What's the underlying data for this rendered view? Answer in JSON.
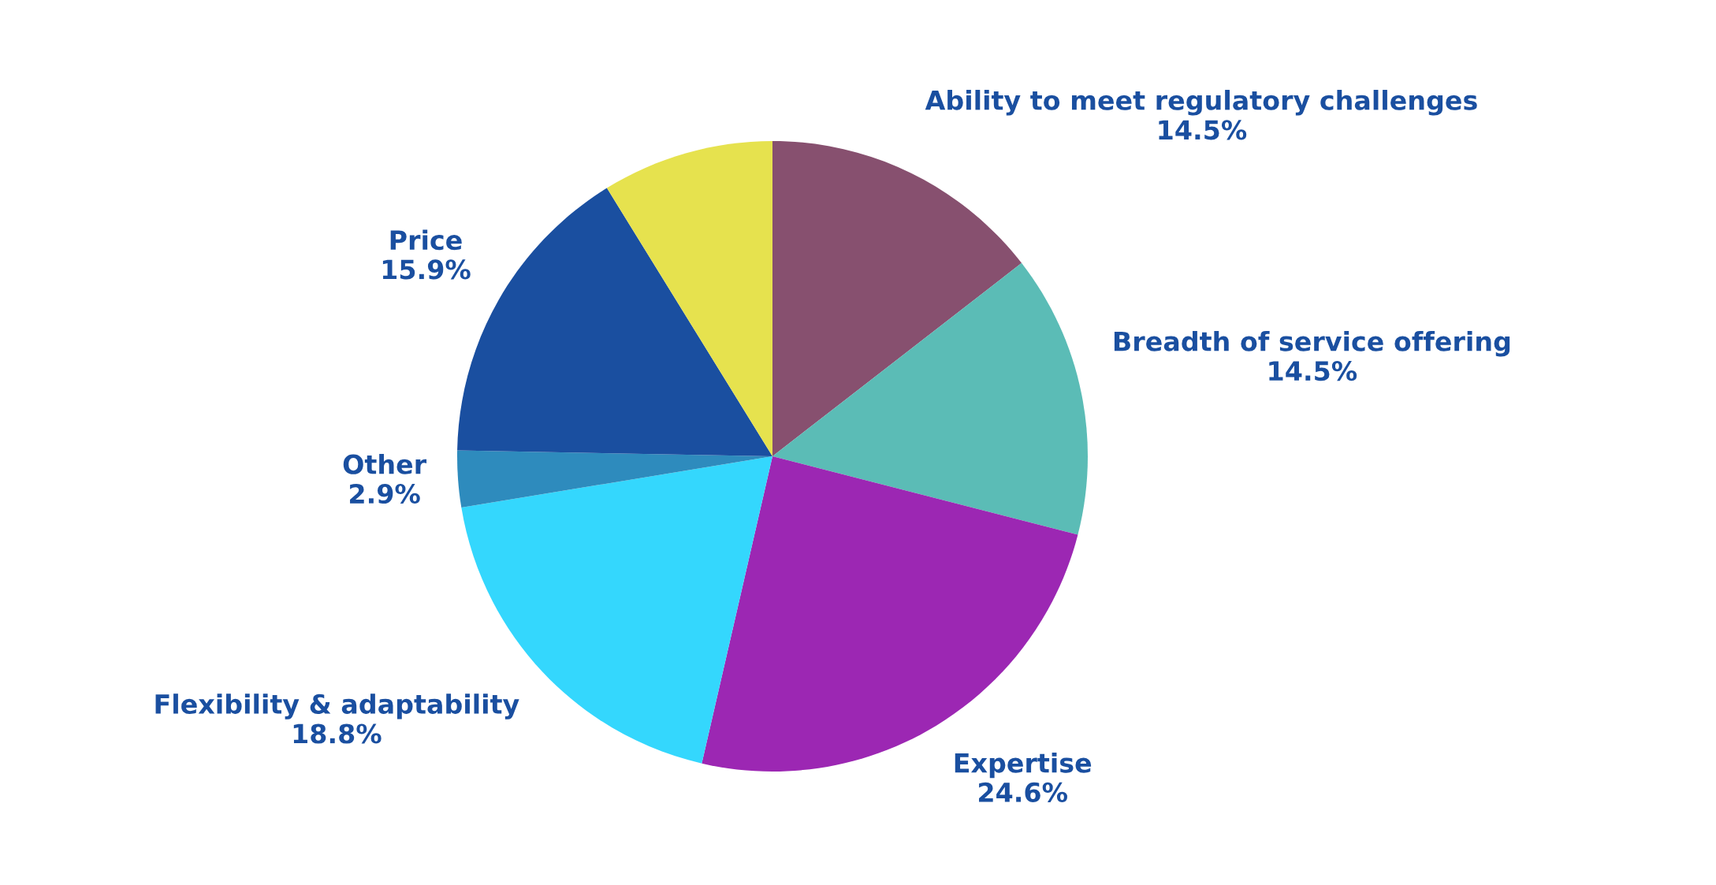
{
  "chart_data": {
    "type": "pie",
    "categories": [
      "Ability to meet regulatory challenges",
      "Breadth of service offering",
      "Expertise",
      "Flexibility & adaptability",
      "Other",
      "Price",
      null
    ],
    "values": [
      14.5,
      14.5,
      24.6,
      18.8,
      2.9,
      15.9,
      8.8
    ],
    "value_labels": [
      "14.5%",
      "14.5%",
      "24.6%",
      "18.8%",
      "2.9%",
      "15.9%",
      null
    ],
    "colors": [
      "#87506f",
      "#5bbcb6",
      "#9c27b3",
      "#34d7fd",
      "#2e8bbd",
      "#1a4fa0",
      "#e6e24e"
    ],
    "legend": false
  }
}
